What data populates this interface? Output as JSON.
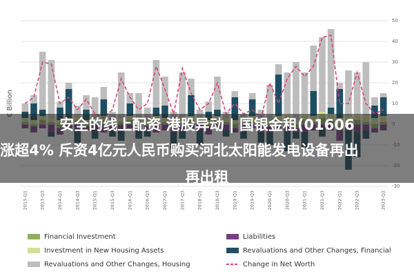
{
  "chart_data": {
    "type": "bar",
    "stacked": true,
    "y_label": "€ Billion",
    "categories": [
      "2013-Q1",
      null,
      "2013-Q3",
      null,
      "2014-Q1",
      null,
      "2014-Q3",
      null,
      "2015-Q1",
      null,
      "2015-Q3",
      null,
      "2016-Q1",
      null,
      "2016-Q3",
      null,
      "2017-Q1",
      null,
      "2017-Q3",
      null,
      "2018-Q1",
      null,
      "2018-Q3",
      null,
      "2019-Q1",
      null,
      "2019-Q3",
      null,
      "2020-Q1",
      null,
      "2020-Q3",
      null,
      "2021-Q1",
      null,
      "2021-Q3",
      null,
      "2022-Q1",
      null,
      "2022-Q3",
      null,
      null,
      "2023-Q2"
    ],
    "ylim": [
      -30,
      50
    ],
    "yticks": [
      -30,
      -20,
      -10,
      0,
      10,
      20,
      30,
      40,
      50
    ],
    "grid": true,
    "legend": "bottom",
    "series": [
      {
        "name": "Financial Investment",
        "color": "#8fae5e",
        "values": [
          1,
          -1,
          2,
          1,
          -2,
          1,
          2,
          -1,
          1,
          2,
          -1,
          1,
          2,
          1,
          -1,
          2,
          1,
          -2,
          1,
          2,
          1,
          -1,
          2,
          1,
          -2,
          1,
          2,
          1,
          -1,
          2,
          3,
          -2,
          2,
          1,
          3,
          2,
          -3,
          1,
          2,
          1,
          -2,
          1
        ]
      },
      {
        "name": "Liabilities",
        "color": "#7a3d87",
        "values": [
          -2,
          -3,
          -2,
          -4,
          -3,
          -2,
          -3,
          -2,
          -3,
          -4,
          -2,
          -3,
          -2,
          -3,
          -2,
          -4,
          -3,
          -2,
          -3,
          -2,
          -3,
          -4,
          -2,
          -3,
          -2,
          -3,
          -2,
          -4,
          -3,
          -2,
          -3,
          -2,
          -4,
          -3,
          -2,
          -3,
          -5,
          -3,
          -4,
          -3,
          -2,
          -3
        ]
      },
      {
        "name": "Investment in New Housing Assets",
        "color": "#d3df92",
        "values": [
          2,
          2,
          2,
          2,
          2,
          2,
          2,
          2,
          2,
          2,
          2,
          2,
          2,
          2,
          2,
          2,
          2,
          2,
          2,
          2,
          2,
          2,
          2,
          2,
          2,
          2,
          2,
          2,
          2,
          2,
          2,
          2,
          3,
          3,
          3,
          3,
          3,
          3,
          3,
          3,
          3,
          3
        ]
      },
      {
        "name": "Revaluations and Other Changes, Financial",
        "color": "#1d4e63",
        "values": [
          3,
          8,
          3,
          -2,
          6,
          14,
          -6,
          5,
          -4,
          8,
          -3,
          -5,
          6,
          -4,
          -3,
          4,
          6,
          -8,
          -4,
          10,
          -7,
          4,
          3,
          -3,
          11,
          -4,
          8,
          -5,
          -6,
          20,
          -10,
          -3,
          -8,
          12,
          -4,
          3,
          14,
          -19,
          -12,
          -4,
          6,
          9
        ]
      },
      {
        "name": "Revaluations and Other Changes, Housing",
        "color": "#bdbdbd",
        "values": [
          4,
          4,
          28,
          28,
          3,
          3,
          5,
          7,
          10,
          6,
          4,
          22,
          5,
          12,
          6,
          23,
          14,
          4,
          22,
          8,
          4,
          5,
          16,
          3,
          3,
          2,
          3,
          4,
          17,
          5,
          20,
          28,
          20,
          22,
          36,
          38,
          3,
          22,
          20,
          26,
          4,
          2
        ]
      },
      {
        "name": "Change in Net Worth",
        "color": "#d9447b",
        "type": "line",
        "dashed": true,
        "values": [
          10,
          13,
          30,
          29,
          10,
          13,
          7,
          12,
          5,
          3,
          7,
          22,
          13,
          7,
          10,
          28,
          17,
          5,
          27,
          15,
          7,
          10,
          20,
          5,
          10,
          5,
          7,
          3,
          20,
          10,
          22,
          28,
          23,
          28,
          42,
          43,
          10,
          10,
          25,
          10,
          5,
          7
        ]
      }
    ]
  },
  "banner": {
    "lines": [
      "安全的线上配资 港股异动 | 国银金租(01606",
      "涨超4% 斥资4亿元人民币购买河北太阳能发电设备再出",
      "再出租"
    ]
  }
}
